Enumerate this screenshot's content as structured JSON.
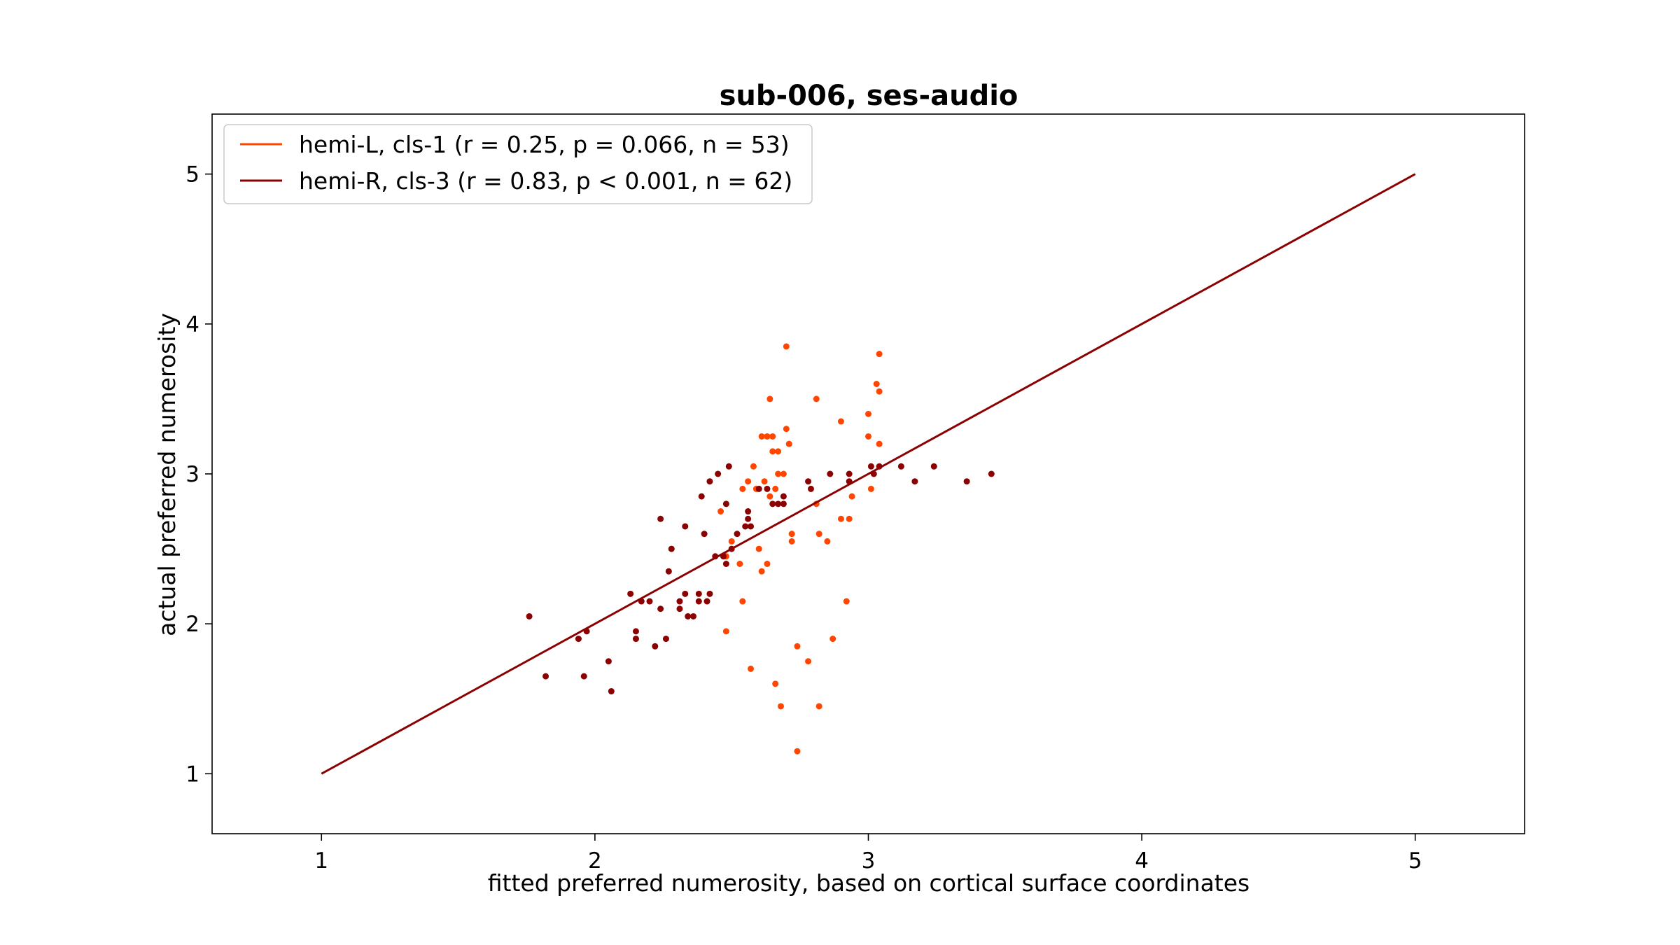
{
  "chart_data": {
    "type": "scatter",
    "title": "sub-006, ses-audio",
    "xlabel": "fitted preferred numerosity, based on cortical surface coordinates",
    "ylabel": "actual preferred numerosity",
    "xlim": [
      0.6,
      5.4
    ],
    "ylim": [
      0.6,
      5.4
    ],
    "xticks": [
      1,
      2,
      3,
      4,
      5
    ],
    "yticks": [
      1,
      2,
      3,
      4,
      5
    ],
    "xtick_labels": [
      "1",
      "2",
      "3",
      "4",
      "5"
    ],
    "ytick_labels": [
      "1",
      "2",
      "3",
      "4",
      "5"
    ],
    "grid": false,
    "legend_position": "top-left",
    "identity_line": {
      "from": [
        1,
        1
      ],
      "to": [
        5,
        5
      ],
      "color": "#8b0000"
    },
    "series": [
      {
        "name": "hemi-L, cls-1 (r = 0.25, p = 0.066, n = 53)",
        "color": "#ff4500",
        "points": [
          [
            2.7,
            3.85
          ],
          [
            3.04,
            3.8
          ],
          [
            3.03,
            3.6
          ],
          [
            3.04,
            3.55
          ],
          [
            2.64,
            3.5
          ],
          [
            2.81,
            3.5
          ],
          [
            3.0,
            3.4
          ],
          [
            2.9,
            3.35
          ],
          [
            2.7,
            3.3
          ],
          [
            2.61,
            3.25
          ],
          [
            2.63,
            3.25
          ],
          [
            2.65,
            3.25
          ],
          [
            3.0,
            3.25
          ],
          [
            2.71,
            3.2
          ],
          [
            3.04,
            3.2
          ],
          [
            2.65,
            3.15
          ],
          [
            2.67,
            3.15
          ],
          [
            2.58,
            3.05
          ],
          [
            2.67,
            3.0
          ],
          [
            2.69,
            3.0
          ],
          [
            2.56,
            2.95
          ],
          [
            2.62,
            2.95
          ],
          [
            2.54,
            2.9
          ],
          [
            2.59,
            2.9
          ],
          [
            2.66,
            2.9
          ],
          [
            3.01,
            2.9
          ],
          [
            2.64,
            2.85
          ],
          [
            2.94,
            2.85
          ],
          [
            2.81,
            2.8
          ],
          [
            2.46,
            2.75
          ],
          [
            2.9,
            2.7
          ],
          [
            2.93,
            2.7
          ],
          [
            2.72,
            2.6
          ],
          [
            2.82,
            2.6
          ],
          [
            2.72,
            2.55
          ],
          [
            2.85,
            2.55
          ],
          [
            2.5,
            2.55
          ],
          [
            2.6,
            2.5
          ],
          [
            2.63,
            2.4
          ],
          [
            2.53,
            2.4
          ],
          [
            2.61,
            2.35
          ],
          [
            2.54,
            2.15
          ],
          [
            2.92,
            2.15
          ],
          [
            2.48,
            1.95
          ],
          [
            2.87,
            1.9
          ],
          [
            2.74,
            1.85
          ],
          [
            2.78,
            1.75
          ],
          [
            2.57,
            1.7
          ],
          [
            2.66,
            1.6
          ],
          [
            2.68,
            1.45
          ],
          [
            2.82,
            1.45
          ],
          [
            2.74,
            1.15
          ],
          [
            2.48,
            2.45
          ]
        ]
      },
      {
        "name": "hemi-R, cls-3 (r = 0.83, p < 0.001, n = 62)",
        "color": "#8b0000",
        "points": [
          [
            2.49,
            3.05
          ],
          [
            3.24,
            3.05
          ],
          [
            3.12,
            3.05
          ],
          [
            3.04,
            3.05
          ],
          [
            3.01,
            3.05
          ],
          [
            2.42,
            2.95
          ],
          [
            2.78,
            2.95
          ],
          [
            2.93,
            2.95
          ],
          [
            3.17,
            2.95
          ],
          [
            3.36,
            2.95
          ],
          [
            2.45,
            3.0
          ],
          [
            2.86,
            3.0
          ],
          [
            2.93,
            3.0
          ],
          [
            3.02,
            3.0
          ],
          [
            3.45,
            3.0
          ],
          [
            2.48,
            2.8
          ],
          [
            2.63,
            2.9
          ],
          [
            2.69,
            2.85
          ],
          [
            2.79,
            2.9
          ],
          [
            2.56,
            2.75
          ],
          [
            2.39,
            2.85
          ],
          [
            2.65,
            2.8
          ],
          [
            2.67,
            2.8
          ],
          [
            2.69,
            2.8
          ],
          [
            2.24,
            2.7
          ],
          [
            2.56,
            2.7
          ],
          [
            2.33,
            2.65
          ],
          [
            2.55,
            2.65
          ],
          [
            2.57,
            2.65
          ],
          [
            2.4,
            2.6
          ],
          [
            2.52,
            2.6
          ],
          [
            2.28,
            2.5
          ],
          [
            2.5,
            2.5
          ],
          [
            2.47,
            2.45
          ],
          [
            2.48,
            2.4
          ],
          [
            2.27,
            2.35
          ],
          [
            2.13,
            2.2
          ],
          [
            2.33,
            2.2
          ],
          [
            2.38,
            2.2
          ],
          [
            2.42,
            2.2
          ],
          [
            2.17,
            2.15
          ],
          [
            2.2,
            2.15
          ],
          [
            2.31,
            2.15
          ],
          [
            2.38,
            2.15
          ],
          [
            2.41,
            2.15
          ],
          [
            2.24,
            2.1
          ],
          [
            2.31,
            2.1
          ],
          [
            2.34,
            2.05
          ],
          [
            2.36,
            2.05
          ],
          [
            1.76,
            2.05
          ],
          [
            1.97,
            1.95
          ],
          [
            2.15,
            1.95
          ],
          [
            1.94,
            1.9
          ],
          [
            2.15,
            1.9
          ],
          [
            2.26,
            1.9
          ],
          [
            2.22,
            1.85
          ],
          [
            2.05,
            1.75
          ],
          [
            1.82,
            1.65
          ],
          [
            1.96,
            1.65
          ],
          [
            2.06,
            1.55
          ],
          [
            2.6,
            2.9
          ],
          [
            2.44,
            2.45
          ]
        ]
      }
    ]
  }
}
